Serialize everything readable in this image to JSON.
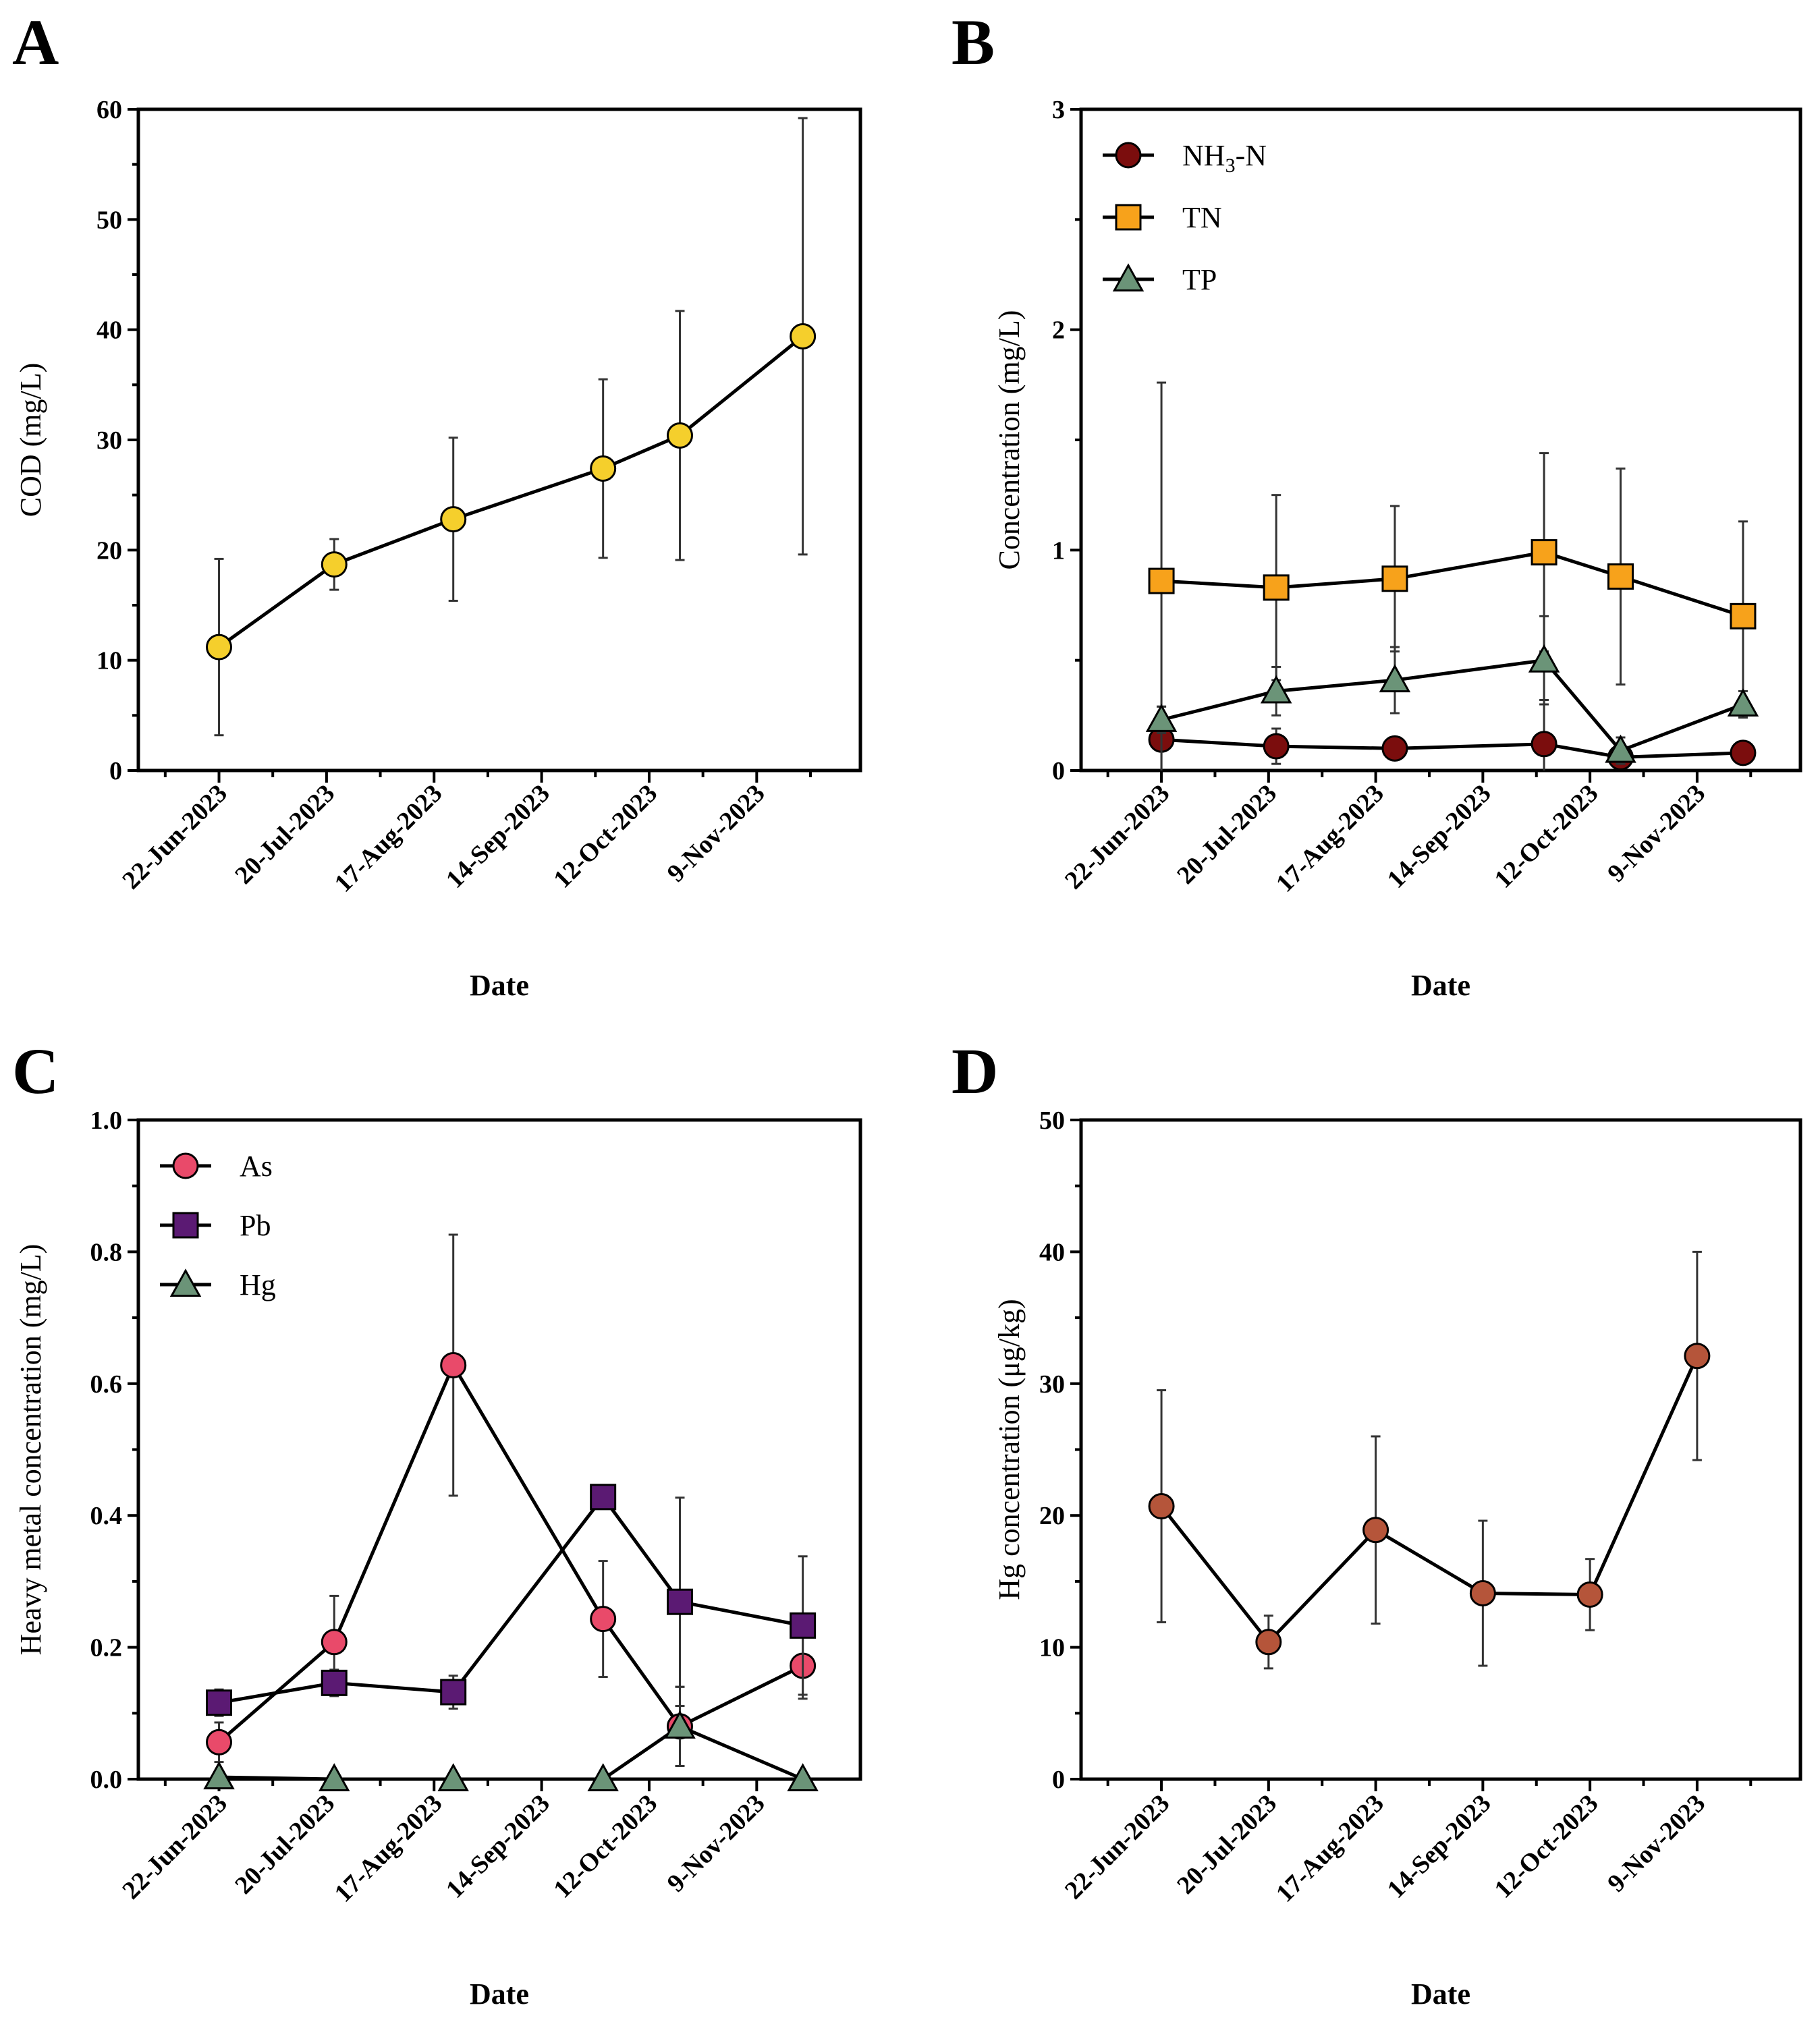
{
  "chart_data": [
    {
      "panel": "A",
      "type": "line",
      "xlabel": "Date",
      "ylabel": "COD (mg/L)",
      "ylim": [
        0,
        60
      ],
      "yticks": [
        0,
        10,
        20,
        30,
        40,
        50,
        60
      ],
      "x_tick_labels": [
        "22-Jun-2023",
        "20-Jul-2023",
        "17-Aug-2023",
        "14-Sep-2023",
        "12-Oct-2023",
        "9-Nov-2023"
      ],
      "x_dates": [
        "22-Jun-2023",
        "22-Jul-2023",
        "22-Aug-2023",
        "30-Sep-2023",
        "20-Oct-2023",
        "21-Nov-2023"
      ],
      "series": [
        {
          "name": "COD",
          "marker": "circle",
          "color": "#f5cf2c",
          "values": [
            11.2,
            18.7,
            22.8,
            27.4,
            30.4,
            39.4
          ],
          "error": [
            8,
            2.3,
            7.4,
            8.1,
            11.3,
            19.8
          ]
        }
      ]
    },
    {
      "panel": "B",
      "type": "line",
      "xlabel": "Date",
      "ylabel": "Concentration (mg/L)",
      "ylim": [
        0,
        3
      ],
      "yticks": [
        0,
        1,
        2,
        3
      ],
      "x_tick_labels": [
        "22-Jun-2023",
        "20-Jul-2023",
        "17-Aug-2023",
        "14-Sep-2023",
        "12-Oct-2023",
        "9-Nov-2023"
      ],
      "x_dates": [
        "22-Jun-2023",
        "22-Jul-2023",
        "22-Aug-2023",
        "30-Sep-2023",
        "20-Oct-2023",
        "21-Nov-2023"
      ],
      "legend": [
        "NH3-N",
        "TN",
        "TP"
      ],
      "series": [
        {
          "name": "NH3-N",
          "marker": "circle",
          "color": "#7b0d0d",
          "values": [
            0.14,
            0.11,
            0.1,
            0.12,
            0.06,
            0.08
          ],
          "error": [
            0.15,
            0.08,
            0.02,
            0.2,
            0.03,
            0.02
          ]
        },
        {
          "name": "TN",
          "marker": "square",
          "color": "#f7a21b",
          "values": [
            0.86,
            0.83,
            0.87,
            0.99,
            0.88,
            0.7
          ],
          "error": [
            0.9,
            0.42,
            0.33,
            0.45,
            0.49,
            0.43
          ]
        },
        {
          "name": "TP",
          "marker": "triangle",
          "color": "#6b9478",
          "values": [
            0.23,
            0.36,
            0.41,
            0.5,
            0.09,
            0.3
          ],
          "error": [
            0.06,
            0.11,
            0.15,
            0.2,
            0.06,
            0.06
          ]
        }
      ]
    },
    {
      "panel": "C",
      "type": "line",
      "xlabel": "Date",
      "ylabel": "Heavy metal concentration (mg/L)",
      "ylim": [
        0,
        1.0
      ],
      "yticks": [
        0.0,
        0.2,
        0.4,
        0.6,
        0.8,
        1.0
      ],
      "x_tick_labels": [
        "22-Jun-2023",
        "20-Jul-2023",
        "17-Aug-2023",
        "14-Sep-2023",
        "12-Oct-2023",
        "9-Nov-2023"
      ],
      "x_dates": [
        "22-Jun-2023",
        "22-Jul-2023",
        "22-Aug-2023",
        "30-Sep-2023",
        "20-Oct-2023",
        "21-Nov-2023"
      ],
      "legend": [
        "As",
        "Pb",
        "Hg"
      ],
      "series": [
        {
          "name": "As",
          "marker": "circle",
          "color": "#e94a6a",
          "values": [
            0.056,
            0.208,
            0.628,
            0.243,
            0.08,
            0.172
          ],
          "error": [
            0.03,
            0.07,
            0.198,
            0.088,
            0.06,
            0.05
          ]
        },
        {
          "name": "Pb",
          "marker": "square",
          "color": "#5b1a73",
          "values": [
            0.116,
            0.146,
            0.132,
            0.428,
            0.269,
            0.233
          ],
          "error": [
            0.02,
            0.02,
            0.025,
            0.01,
            0.158,
            0.105
          ]
        },
        {
          "name": "Hg",
          "marker": "triangle",
          "color": "#6b9478",
          "values": [
            0.003,
            0.0,
            0.0,
            0.0,
            0.08,
            0.0
          ],
          "error": [
            0.004,
            0.003,
            0.003,
            0.003,
            0.06,
            0.003
          ]
        }
      ]
    },
    {
      "panel": "D",
      "type": "line",
      "xlabel": "Date",
      "ylabel": "Hg concentration (μg/kg)",
      "ylim": [
        0,
        50
      ],
      "yticks": [
        0,
        10,
        20,
        30,
        40,
        50
      ],
      "x_tick_labels": [
        "22-Jun-2023",
        "20-Jul-2023",
        "17-Aug-2023",
        "14-Sep-2023",
        "12-Oct-2023",
        "9-Nov-2023"
      ],
      "x_dates": [
        "22-Jun-2023",
        "20-Jul-2023",
        "17-Aug-2023",
        "14-Sep-2023",
        "12-Oct-2023",
        "9-Nov-2023"
      ],
      "series": [
        {
          "name": "Hg",
          "marker": "circle",
          "color": "#b5553a",
          "values": [
            20.7,
            10.4,
            18.9,
            14.1,
            14.0,
            32.1
          ],
          "error": [
            8.8,
            2.0,
            7.1,
            5.5,
            2.7,
            7.9
          ]
        }
      ]
    }
  ]
}
